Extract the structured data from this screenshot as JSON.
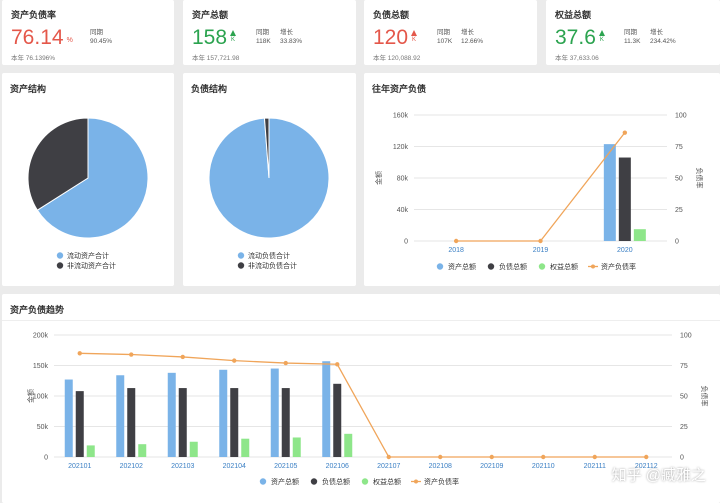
{
  "colors": {
    "blue": "#7ab3e8",
    "dark": "#3f3f44",
    "green": "#8ee68a",
    "orange": "#f0a55a",
    "up_green": "#2ba34f",
    "up_red": "#e4574a"
  },
  "kpis": [
    {
      "title": "资产负债率",
      "value": "76.14",
      "unit": "%",
      "color": "red",
      "meta_label": "同期",
      "meta_value": "90.45%",
      "footer": "本年 76.1396%"
    },
    {
      "title": "资产总额",
      "value": "158",
      "unit": "K",
      "color": "green",
      "arrow": "up-green",
      "meta_labels": [
        "同期",
        "增长"
      ],
      "meta_values": [
        "118K",
        "33.83%"
      ],
      "footer": "本年 157,721.98"
    },
    {
      "title": "负债总额",
      "value": "120",
      "unit": "K",
      "color": "red",
      "arrow": "up-red",
      "meta_labels": [
        "同期",
        "增长"
      ],
      "meta_values": [
        "107K",
        "12.66%"
      ],
      "footer": "本年 120,088.92"
    },
    {
      "title": "权益总额",
      "value": "37.6",
      "unit": "K",
      "color": "green",
      "arrow": "up-green",
      "meta_labels": [
        "同期",
        "增长"
      ],
      "meta_values": [
        "11.3K",
        "234.42%"
      ],
      "footer": "本年 37,633.06"
    }
  ],
  "panels": {
    "asset_structure": "资产结构",
    "liability_structure": "负债结构",
    "history": "往年资产负债",
    "trend": "资产负债趋势"
  },
  "chart_data": [
    {
      "type": "pie",
      "slices": [
        {
          "name": "流动资产合计",
          "value": 0.66,
          "color": "#7ab3e8"
        },
        {
          "name": "非流动资产合计",
          "value": 0.34,
          "color": "#3f3f44"
        }
      ]
    },
    {
      "type": "pie",
      "slices": [
        {
          "name": "流动负债合计",
          "value": 0.988,
          "color": "#7ab3e8"
        },
        {
          "name": "非流动负债合计",
          "value": 0.012,
          "color": "#3f3f44"
        }
      ]
    },
    {
      "type": "bar",
      "categories": [
        "2018",
        "2019",
        "2020"
      ],
      "series": [
        {
          "name": "资产总额",
          "values": [
            0,
            0,
            123000
          ],
          "color": "#7ab3e8"
        },
        {
          "name": "负债总额",
          "values": [
            0,
            0,
            106000
          ],
          "color": "#3f3f44"
        },
        {
          "name": "权益总额",
          "values": [
            0,
            0,
            15000
          ],
          "color": "#8ee68a"
        },
        {
          "name": "资产负债率",
          "values": [
            0,
            0,
            86
          ],
          "color": "#f0a55a",
          "axis": "right",
          "kind": "line"
        }
      ],
      "ylabel": "金额",
      "y2label": "负债率",
      "yticks": [
        "0",
        "40k",
        "80k",
        "120k",
        "160k"
      ],
      "ylim": [
        0,
        160000
      ],
      "y2ticks": [
        "0",
        "25",
        "50",
        "75",
        "100"
      ],
      "y2lim": [
        0,
        100
      ]
    },
    {
      "type": "bar",
      "categories": [
        "202101",
        "202102",
        "202103",
        "202104",
        "202105",
        "202106",
        "202107",
        "202108",
        "202109",
        "202110",
        "202111",
        "202112"
      ],
      "series": [
        {
          "name": "资产总额",
          "values": [
            127000,
            134000,
            138000,
            143000,
            145000,
            157000,
            0,
            0,
            0,
            0,
            0,
            0
          ],
          "color": "#7ab3e8"
        },
        {
          "name": "负债总额",
          "values": [
            108000,
            113000,
            113000,
            113000,
            113000,
            120000,
            0,
            0,
            0,
            0,
            0,
            0
          ],
          "color": "#3f3f44"
        },
        {
          "name": "权益总额",
          "values": [
            19000,
            21000,
            25000,
            30000,
            32000,
            38000,
            0,
            0,
            0,
            0,
            0,
            0
          ],
          "color": "#8ee68a"
        },
        {
          "name": "资产负债率",
          "values": [
            85,
            84,
            82,
            79,
            77,
            76,
            0,
            0,
            0,
            0,
            0,
            0
          ],
          "color": "#f0a55a",
          "axis": "right",
          "kind": "line"
        }
      ],
      "ylabel": "金额",
      "y2label": "负债率",
      "yticks": [
        "0",
        "50k",
        "100k",
        "150k",
        "200k"
      ],
      "ylim": [
        0,
        200000
      ],
      "y2ticks": [
        "0",
        "25",
        "50",
        "75",
        "100"
      ],
      "y2lim": [
        0,
        100
      ]
    }
  ],
  "watermark": "知乎 @臧雅之"
}
